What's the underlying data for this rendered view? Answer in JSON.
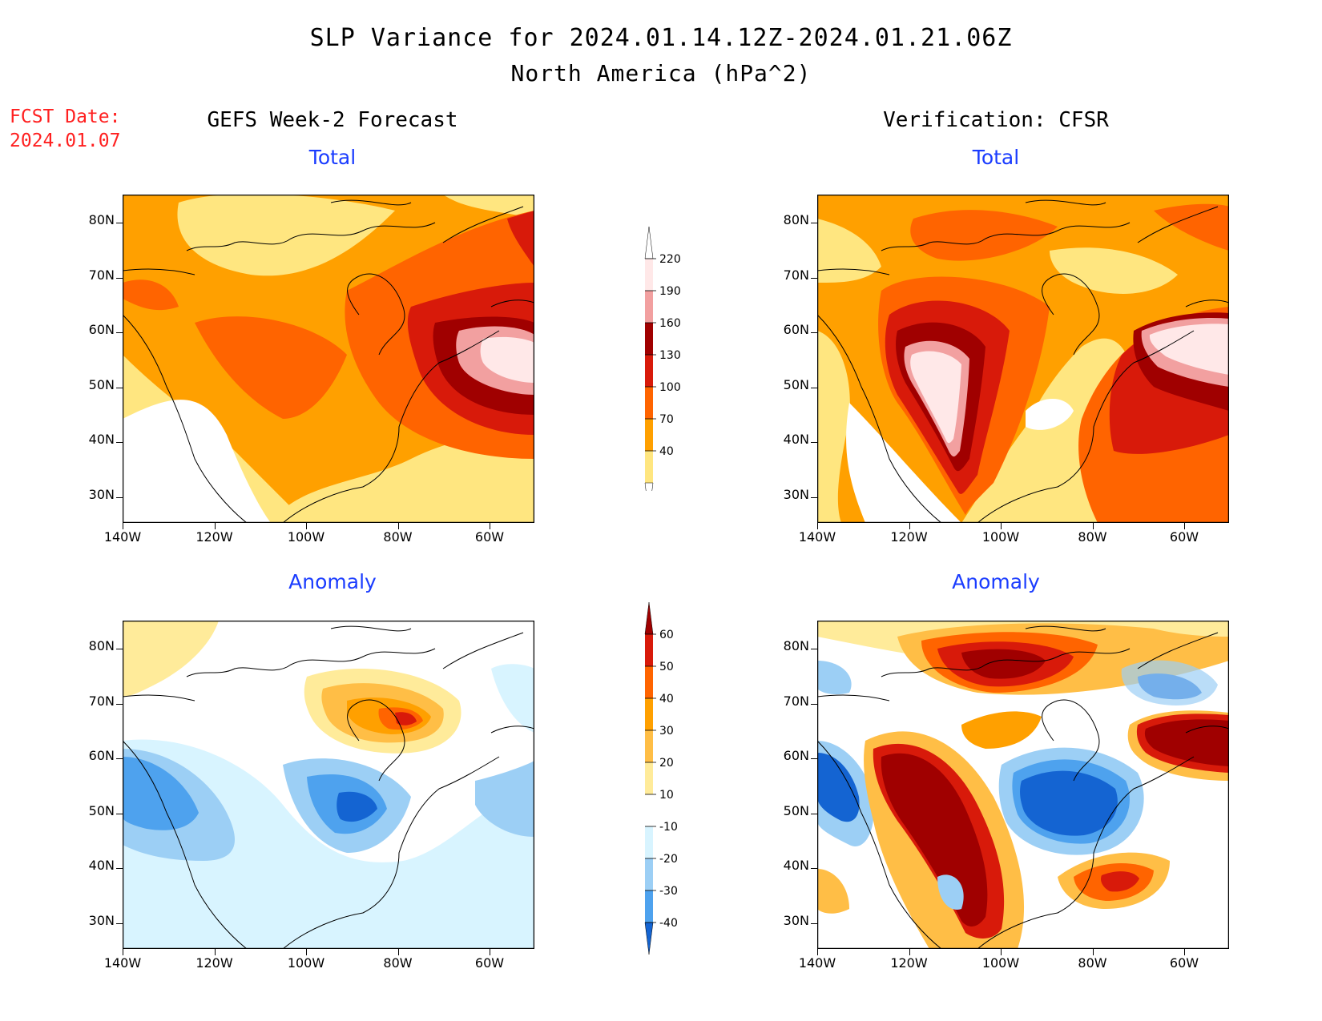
{
  "title": "SLP Variance for 2024.01.14.12Z-2024.01.21.06Z",
  "subtitle": "North America (hPa^2)",
  "fcst_label": "FCST Date:",
  "fcst_date": "2024.01.07",
  "left_column_title": "GEFS Week-2 Forecast",
  "right_column_title": "Verification: CFSR",
  "panels": {
    "total_label": "Total",
    "anomaly_label": "Anomaly"
  },
  "axes": {
    "lat_ticks": [
      "80N",
      "70N",
      "60N",
      "50N",
      "40N",
      "30N"
    ],
    "lon_ticks": [
      "140W",
      "120W",
      "100W",
      "80W",
      "60W"
    ]
  },
  "total_colorbar": {
    "labels": [
      "220",
      "190",
      "160",
      "130",
      "100",
      "70",
      "40"
    ],
    "colors": [
      "#ffe8e8",
      "#f2a0a0",
      "#a00000",
      "#d81a0a",
      "#ff6400",
      "#ffa000",
      "#ffe680"
    ]
  },
  "anomaly_colorbar": {
    "labels": [
      "60",
      "50",
      "40",
      "30",
      "20",
      "10",
      "-10",
      "-20",
      "-30",
      "-40"
    ],
    "colors": [
      "#a00000",
      "#d81a0a",
      "#ff6400",
      "#ffa000",
      "#ffbe46",
      "#ffeb9a",
      "#ffffff",
      "#d8f4ff",
      "#9ccff5",
      "#4ea2ee",
      "#1464d2"
    ]
  },
  "colors": {
    "title": "#000000",
    "fcst": "#ff2020",
    "panel_title": "#1a3cff"
  }
}
